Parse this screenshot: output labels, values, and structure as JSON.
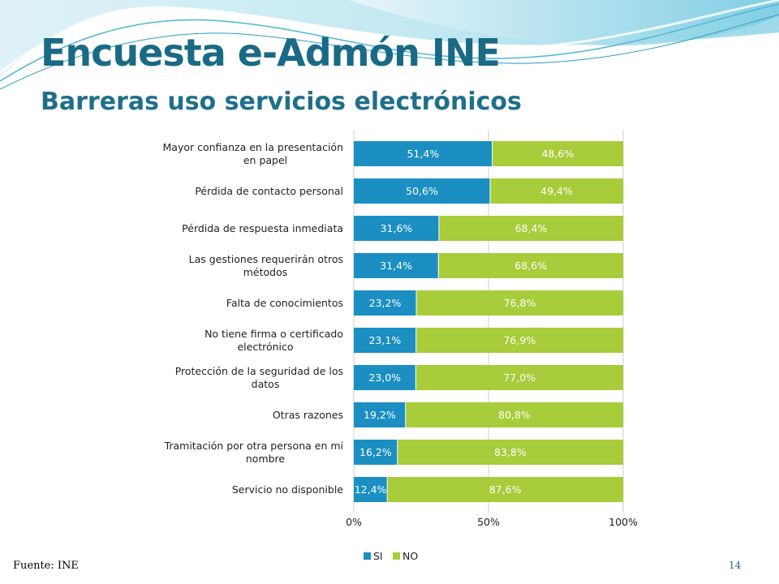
{
  "slide": {
    "title": "Encuesta e-Admón INE",
    "subtitle": "Barreras uso servicios electrónicos",
    "source": "Fuente: INE",
    "page_number": "14"
  },
  "chart_data": {
    "type": "bar",
    "orientation": "horizontal",
    "stacked": true,
    "categories": [
      "Mayor confianza en la presentación en papel",
      "Pérdida de contacto personal",
      "Pérdida de respuesta inmediata",
      "Las gestiones requerirán otros métodos",
      "Falta de conocimientos",
      "No tiene firma o certificado electrónico",
      "Protección de la seguridad de los datos",
      "Otras razones",
      "Tramitación por otra persona en mi nombre",
      "Servicio no disponible"
    ],
    "series": [
      {
        "name": "SI",
        "color": "#1b8fc2",
        "values": [
          51.4,
          50.6,
          31.6,
          31.4,
          23.2,
          23.1,
          23.0,
          19.2,
          16.2,
          12.4
        ],
        "labels": [
          "51,4%",
          "50,6%",
          "31,6%",
          "31,4%",
          "23,2%",
          "23,1%",
          "23,0%",
          "19,2%",
          "16,2%",
          "12,4%"
        ]
      },
      {
        "name": "NO",
        "color": "#a8cc3a",
        "values": [
          48.6,
          49.4,
          68.4,
          68.6,
          76.8,
          76.9,
          77.0,
          80.8,
          83.8,
          87.6
        ],
        "labels": [
          "48,6%",
          "49,4%",
          "68,4%",
          "68,6%",
          "76,8%",
          "76,9%",
          "77,0%",
          "80,8%",
          "83,8%",
          "87,6%"
        ]
      }
    ],
    "xlim": [
      0,
      100
    ],
    "x_ticks": [
      0,
      50,
      100
    ],
    "x_tick_labels": [
      "0%",
      "50%",
      "100%"
    ],
    "grid": true,
    "legend": "bottom-center"
  }
}
